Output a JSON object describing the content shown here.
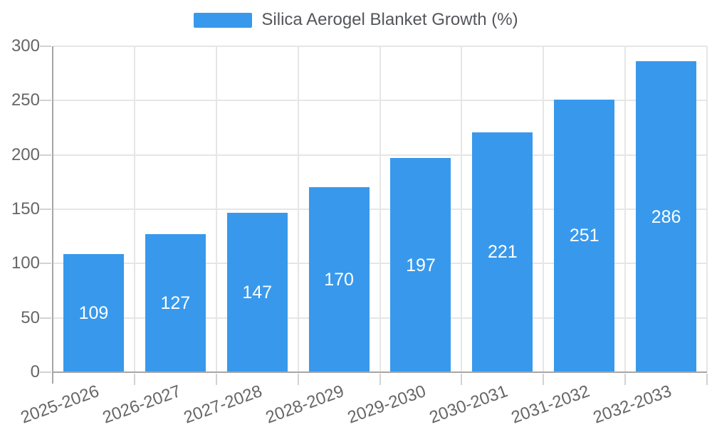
{
  "chart_data": {
    "type": "bar",
    "title": "Silica Aerogel Blanket Growth (%)",
    "categories": [
      "2025-2026",
      "2026-2027",
      "2027-2028",
      "2028-2029",
      "2029-2030",
      "2030-2031",
      "2031-2032",
      "2032-2033"
    ],
    "series": [
      {
        "name": "Silica Aerogel Blanket Growth (%)",
        "values": [
          109,
          127,
          147,
          170,
          197,
          221,
          251,
          286
        ]
      }
    ],
    "xlabel": "",
    "ylabel": "",
    "ylim": [
      0,
      300
    ],
    "yticks": [
      0,
      50,
      100,
      150,
      200,
      250,
      300
    ],
    "grid": true,
    "legend_position": "top",
    "x_label_rotation_deg": -20,
    "value_labels": "centered-in-bar",
    "colors": {
      "bar": "#3899ec",
      "value_label": "#ffffff",
      "grid": "#e6e6e6",
      "tick_mark": "#d2d2d2",
      "axis_line": "#a6a6a6",
      "tick_text": "#666666",
      "legend_text": "#54565a"
    }
  }
}
